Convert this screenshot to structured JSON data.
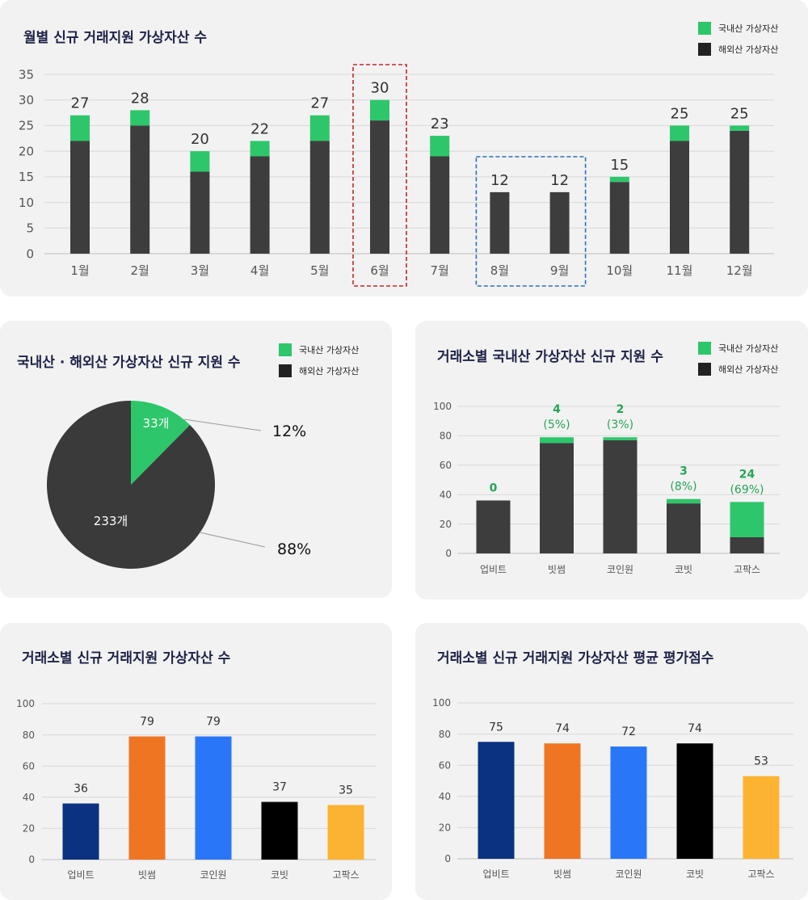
{
  "colors": {
    "domestic": "#2ec66a",
    "overseas": "#3d3d3d",
    "pie_overseas": "#3a3a3a",
    "grid": "#d8d8d8",
    "axis_text": "#555555",
    "title": "#1e2247",
    "highlight_red": "#c0272d",
    "highlight_blue": "#2a6ebb"
  },
  "legend": {
    "domestic_label": "국내산 가상자산",
    "overseas_label": "해외산 가상자산"
  },
  "monthly": {
    "title": "월별 신규 거래지원 가상자산 수"
  },
  "pie": {
    "title": "국내산 · 해외산 가상자산 신규 지원 수"
  },
  "exchange_domestic": {
    "title": "거래소별 국내산 가상자산 신규 지원 수"
  },
  "exchange_total": {
    "title": "거래소별 신규 거래지원 가상자산 수"
  },
  "exchange_score": {
    "title": "거래소별 신규 거래지원 가상자산 평균 평가점수"
  },
  "chart_data": [
    {
      "type": "bar",
      "title": "월별 신규 거래지원 가상자산 수",
      "stacked": true,
      "categories": [
        "1월",
        "2월",
        "3월",
        "4월",
        "5월",
        "6월",
        "7월",
        "8월",
        "9월",
        "10월",
        "11월",
        "12월"
      ],
      "series": [
        {
          "name": "해외산 가상자산",
          "values": [
            22,
            25,
            16,
            19,
            22,
            26,
            19,
            12,
            12,
            14,
            22,
            24
          ]
        },
        {
          "name": "국내산 가상자산",
          "values": [
            5,
            3,
            4,
            3,
            5,
            4,
            4,
            0,
            0,
            1,
            3,
            1
          ]
        }
      ],
      "totals": [
        27,
        28,
        20,
        22,
        27,
        30,
        23,
        12,
        12,
        15,
        25,
        25
      ],
      "yticks": [
        "0",
        "5",
        "10",
        "15",
        "20",
        "25",
        "30",
        "35"
      ],
      "ylim": [
        0,
        35
      ],
      "grid": true,
      "legend": "top-right",
      "highlights": [
        {
          "categories": [
            "6월"
          ],
          "color": "red",
          "style": "dashed"
        },
        {
          "categories": [
            "8월",
            "9월"
          ],
          "color": "blue",
          "style": "dashed"
        }
      ]
    },
    {
      "type": "pie",
      "title": "국내산 · 해외산 가상자산 신규 지원 수",
      "slices": [
        {
          "name": "국내산 가상자산",
          "value": 33,
          "label": "33개",
          "percent": "12%"
        },
        {
          "name": "해외산 가상자산",
          "value": 233,
          "label": "233개",
          "percent": "88%"
        }
      ],
      "legend": "top-right"
    },
    {
      "type": "bar",
      "title": "거래소별 국내산 가상자산 신규 지원 수",
      "stacked": true,
      "categories": [
        "업비트",
        "빗썸",
        "코인원",
        "코빗",
        "고팍스"
      ],
      "series": [
        {
          "name": "해외산 가상자산",
          "values": [
            36,
            75,
            77,
            34,
            11
          ]
        },
        {
          "name": "국내산 가상자산",
          "values": [
            0,
            4,
            2,
            3,
            24
          ]
        }
      ],
      "labels": [
        {
          "count": "0",
          "pct": ""
        },
        {
          "count": "4",
          "pct": "(5%)"
        },
        {
          "count": "2",
          "pct": "(3%)"
        },
        {
          "count": "3",
          "pct": "(8%)"
        },
        {
          "count": "24",
          "pct": "(69%)"
        }
      ],
      "yticks": [
        "0",
        "20",
        "40",
        "60",
        "80",
        "100"
      ],
      "ylim": [
        0,
        100
      ],
      "grid": true,
      "legend": "top-right"
    },
    {
      "type": "bar",
      "title": "거래소별 신규 거래지원 가상자산 수",
      "categories": [
        "업비트",
        "빗썸",
        "코인원",
        "코빗",
        "고팍스"
      ],
      "values": [
        36,
        79,
        79,
        37,
        35
      ],
      "value_labels": [
        "36",
        "79",
        "79",
        "37",
        "35"
      ],
      "bar_colors": [
        "#0a3280",
        "#f07523",
        "#2a76f8",
        "#000000",
        "#fcb332"
      ],
      "yticks": [
        "0",
        "20",
        "40",
        "60",
        "80",
        "100"
      ],
      "ylim": [
        0,
        100
      ],
      "grid": true
    },
    {
      "type": "bar",
      "title": "거래소별 신규 거래지원 가상자산 평균 평가점수",
      "categories": [
        "업비트",
        "빗썸",
        "코인원",
        "코빗",
        "고팍스"
      ],
      "values": [
        75,
        74,
        72,
        74,
        53
      ],
      "value_labels": [
        "75",
        "74",
        "72",
        "74",
        "53"
      ],
      "bar_colors": [
        "#0a3280",
        "#f07523",
        "#2a76f8",
        "#000000",
        "#fcb332"
      ],
      "yticks": [
        "0",
        "20",
        "40",
        "60",
        "80",
        "100"
      ],
      "ylim": [
        0,
        100
      ],
      "grid": true
    }
  ]
}
